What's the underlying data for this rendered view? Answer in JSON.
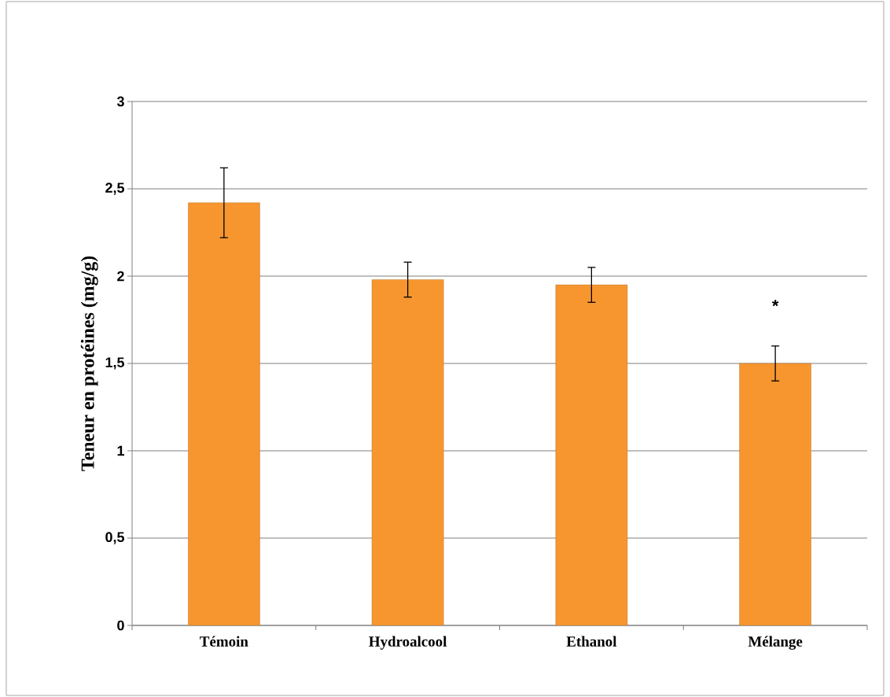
{
  "chart_data": {
    "type": "bar",
    "ylabel": "Teneur en protéines (mg/g)",
    "categories": [
      "Témoin",
      "Hydroalcool",
      "Ethanol",
      "Mélange"
    ],
    "values": [
      2.42,
      1.98,
      1.95,
      1.5
    ],
    "errors": [
      0.2,
      0.1,
      0.1,
      0.1
    ],
    "color": "#f7962f",
    "ylim": [
      0,
      3
    ],
    "yticks": [
      0,
      {
        "value": 0.5,
        "label": "0,5"
      },
      1,
      {
        "value": 1.5,
        "label": "1,5"
      },
      2,
      {
        "value": 2.5,
        "label": "2,5"
      },
      3
    ],
    "grid": "y",
    "annotations": [
      "*"
    ]
  }
}
